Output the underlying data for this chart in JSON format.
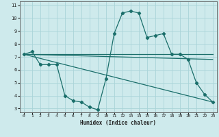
{
  "xlabel": "Humidex (Indice chaleur)",
  "background_color": "#ceeaec",
  "grid_color": "#aad4d8",
  "line_color": "#1a6e6a",
  "xlim": [
    -0.5,
    23.5
  ],
  "ylim": [
    2.7,
    11.3
  ],
  "xticks": [
    0,
    1,
    2,
    3,
    4,
    5,
    6,
    7,
    8,
    9,
    10,
    11,
    12,
    13,
    14,
    15,
    16,
    17,
    18,
    19,
    20,
    21,
    22,
    23
  ],
  "yticks": [
    3,
    4,
    5,
    6,
    7,
    8,
    9,
    10,
    11
  ],
  "main_series": {
    "x": [
      0,
      1,
      2,
      3,
      4,
      5,
      6,
      7,
      8,
      9,
      10,
      11,
      12,
      13,
      14,
      15,
      16,
      17,
      18,
      19,
      20,
      21,
      22,
      23
    ],
    "y": [
      7.2,
      7.4,
      6.4,
      6.4,
      6.4,
      4.0,
      3.6,
      3.5,
      3.1,
      2.9,
      5.3,
      8.8,
      10.4,
      10.55,
      10.4,
      8.5,
      8.65,
      8.8,
      7.2,
      7.2,
      6.8,
      5.0,
      4.1,
      3.5
    ]
  },
  "ref_lines": [
    {
      "x": [
        0,
        23
      ],
      "y": [
        7.2,
        7.2
      ]
    },
    {
      "x": [
        0,
        23
      ],
      "y": [
        7.2,
        3.5
      ]
    },
    {
      "x": [
        0,
        23
      ],
      "y": [
        7.2,
        6.8
      ]
    }
  ]
}
